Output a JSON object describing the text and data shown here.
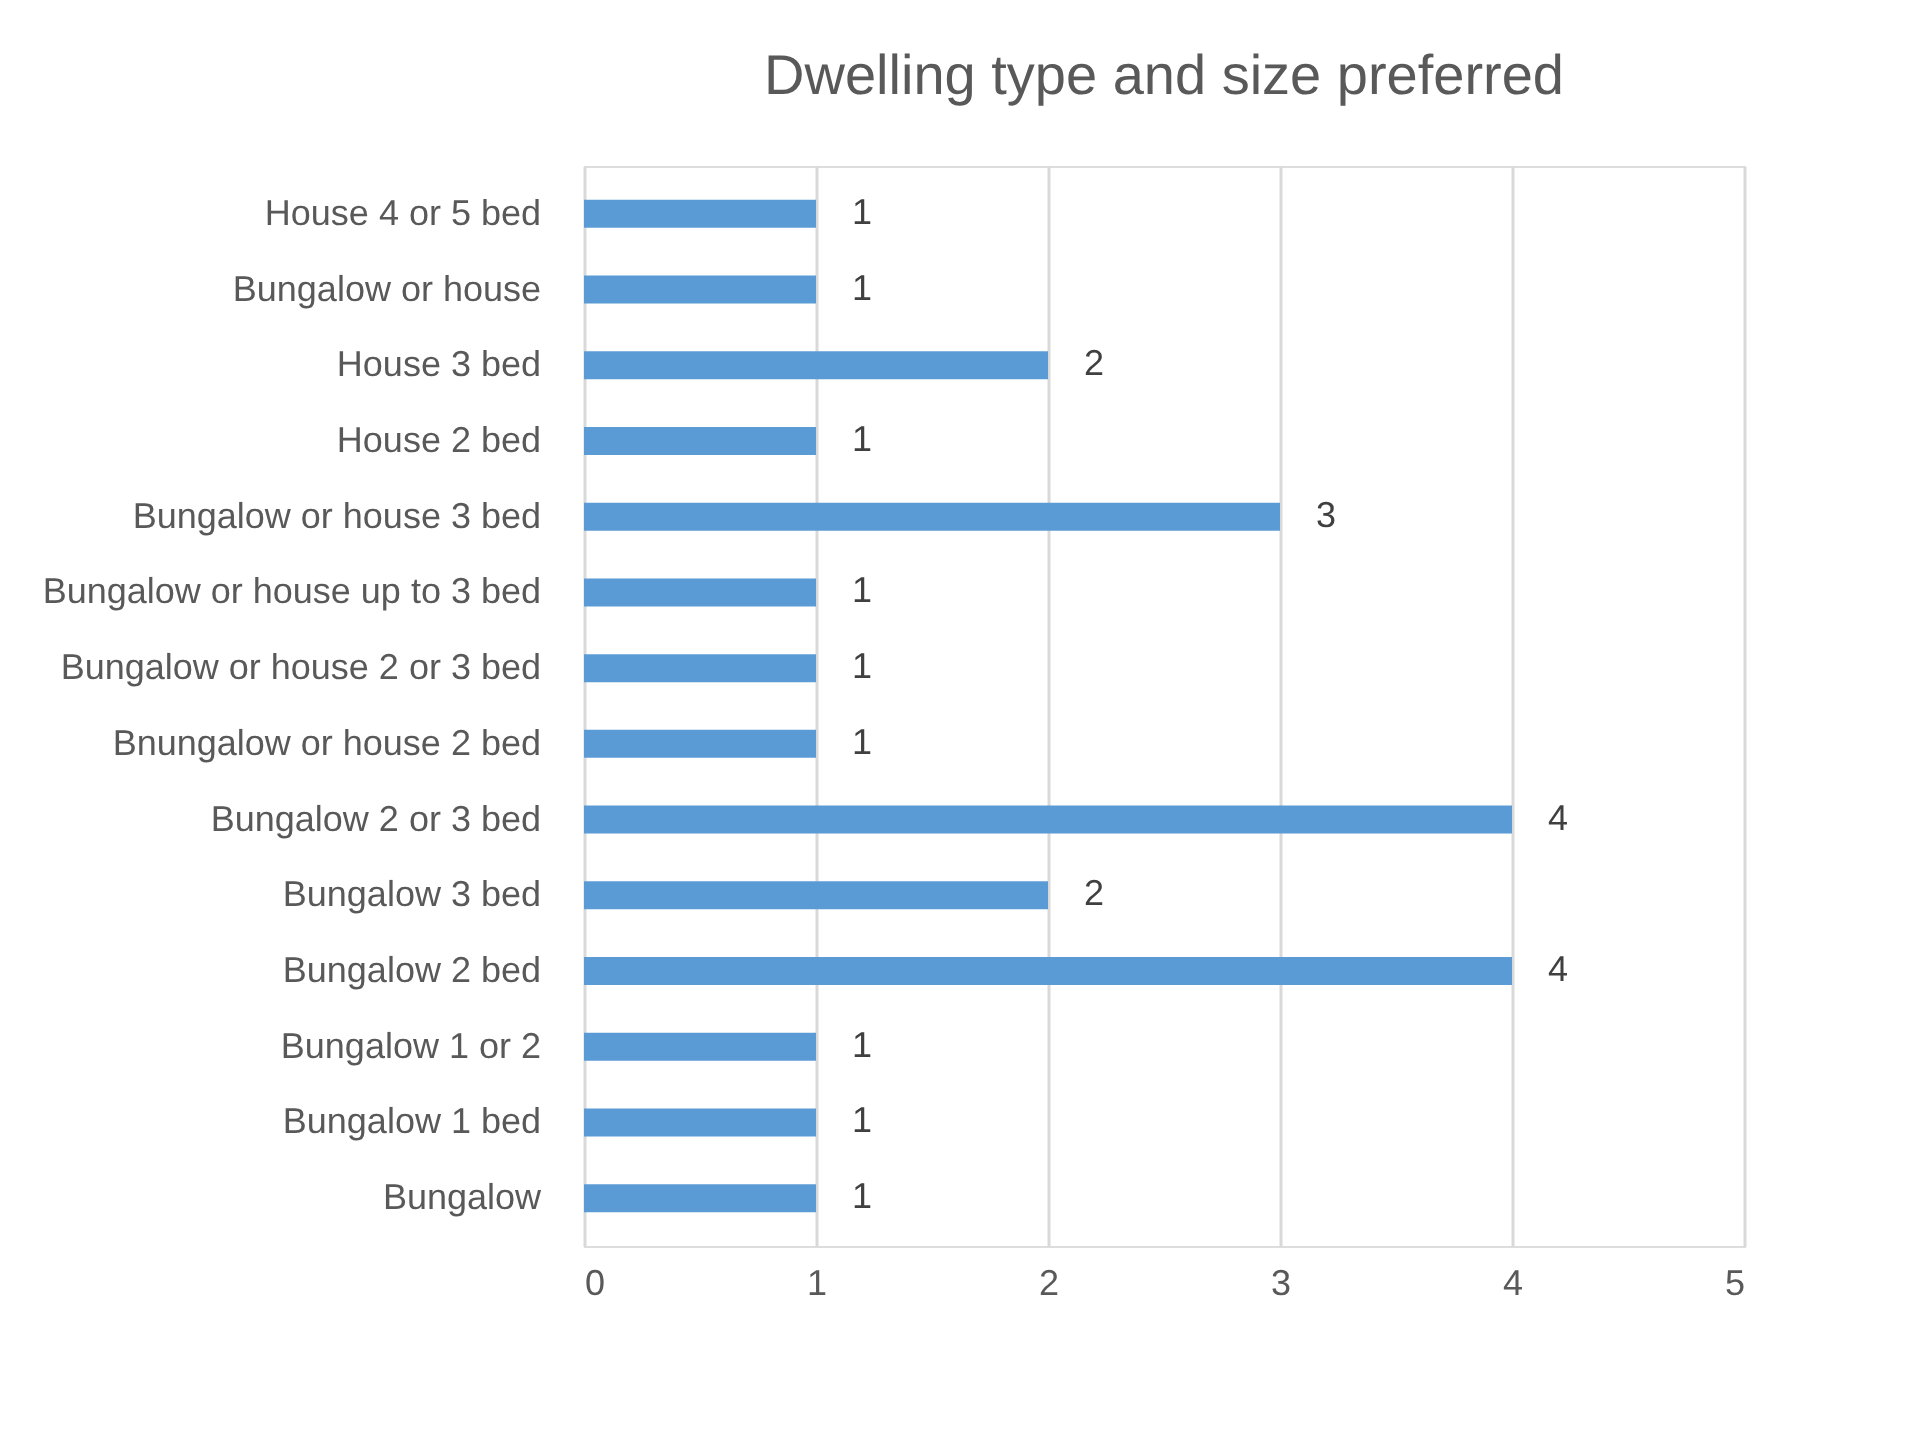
{
  "chart_data": {
    "type": "bar",
    "orientation": "horizontal",
    "title": "Dwelling type and size preferred",
    "categories": [
      "House 4 or 5 bed",
      "Bungalow or house",
      "House 3 bed",
      "House 2 bed",
      "Bungalow or house 3 bed",
      "Bungalow or house up to 3 bed",
      "Bungalow or house 2 or 3 bed",
      "Bnungalow or house 2 bed",
      "Bungalow 2 or 3 bed",
      "Bungalow 3 bed",
      "Bungalow 2 bed",
      "Bungalow 1 or 2",
      "Bungalow 1 bed",
      "Bungalow"
    ],
    "values": [
      1,
      1,
      2,
      1,
      3,
      1,
      1,
      1,
      4,
      2,
      4,
      1,
      1,
      1
    ],
    "color": "#5b9bd5",
    "xlim": [
      0,
      5
    ],
    "xticks": [
      0,
      1,
      2,
      3,
      4,
      5
    ],
    "grid": "x",
    "data_labels": true
  }
}
